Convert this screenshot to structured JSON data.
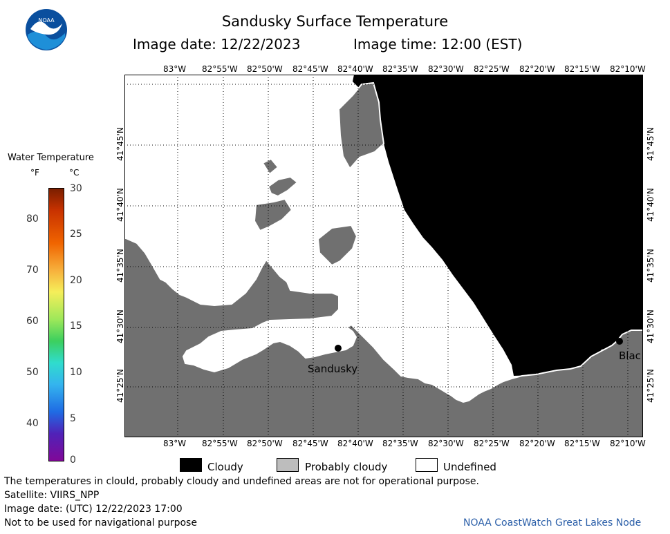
{
  "header": {
    "title": "Sandusky Surface Temperature",
    "image_date": "Image date: 12/22/2023",
    "image_time": "Image time: 12:00 (EST)"
  },
  "logo": {
    "text": "NOAA"
  },
  "colorbar": {
    "title": "Water Temperature",
    "unit_f": "°F",
    "unit_c": "°C",
    "f_ticks": [
      "80",
      "70",
      "60",
      "50",
      "40"
    ],
    "c_ticks": [
      "30",
      "25",
      "20",
      "15",
      "10",
      "5",
      "0"
    ]
  },
  "map": {
    "lon_labels": [
      "83°W",
      "82°55'W",
      "82°50'W",
      "82°45'W",
      "82°40'W",
      "82°35'W",
      "82°30'W",
      "82°25'W",
      "82°20'W",
      "82°15'W",
      "82°10'W"
    ],
    "lat_labels": [
      "41°45'N",
      "41°40'N",
      "41°35'N",
      "41°30'N",
      "41°25'N"
    ],
    "places": [
      {
        "name": "Sandusky"
      },
      {
        "name": "Blac"
      }
    ],
    "colors": {
      "land": "#707070",
      "cloudy": "#000000",
      "probably_cloudy": "#bdbdbd",
      "undefined": "#ffffff"
    }
  },
  "legend": {
    "cloudy": "Cloudy",
    "probably_cloudy": "Probably cloudy",
    "undefined": "Undefined"
  },
  "footer": {
    "line1": "The temperatures in clould, probably cloudy and undefined areas are not for operational purpose.",
    "line2": "Satellite: VIIRS_NPP",
    "line3": "Image date: (UTC) 12/22/2023  17:00",
    "line4": "Not to be used for navigational purpose",
    "credit": "NOAA CoastWatch Great Lakes Node"
  }
}
